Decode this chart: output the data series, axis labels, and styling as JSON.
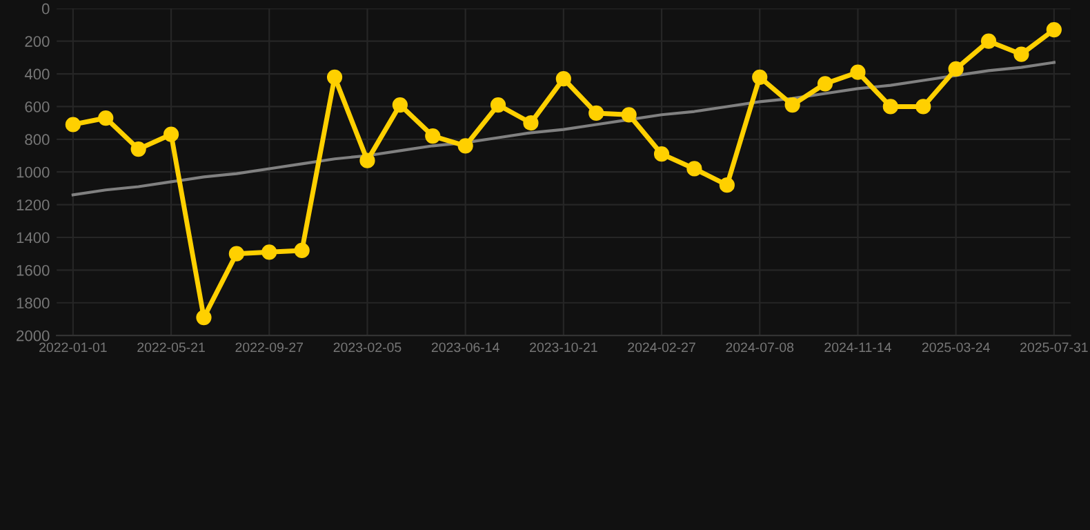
{
  "chart_data": {
    "type": "line",
    "categories": [
      "2022-01-01",
      null,
      null,
      "2022-05-21",
      null,
      null,
      "2022-09-27",
      null,
      null,
      "2023-02-05",
      null,
      null,
      "2023-06-14",
      null,
      null,
      "2023-10-21",
      null,
      null,
      "2024-02-27",
      null,
      null,
      "2024-07-08",
      null,
      null,
      "2024-11-14",
      null,
      null,
      "2025-03-24",
      null,
      null,
      "2025-07-31"
    ],
    "series": [
      {
        "color": "#ffd000",
        "marker": "circle",
        "values": [
          710,
          670,
          860,
          770,
          1890,
          1500,
          1490,
          1480,
          420,
          930,
          590,
          780,
          840,
          590,
          700,
          430,
          640,
          650,
          890,
          980,
          1080,
          420,
          590,
          460,
          390,
          600,
          600,
          370,
          200,
          280,
          130
        ]
      },
      {
        "type": "line",
        "color": "#808080",
        "marker": "none",
        "values": [
          1140,
          1110,
          1090,
          1060,
          1030,
          1010,
          980,
          950,
          920,
          900,
          870,
          840,
          820,
          790,
          760,
          740,
          710,
          680,
          650,
          630,
          600,
          570,
          550,
          520,
          490,
          470,
          440,
          410,
          380,
          360,
          330
        ]
      }
    ],
    "ylim": [
      2000,
      0
    ],
    "yticks": [
      0,
      200,
      400,
      600,
      800,
      1000,
      1200,
      1400,
      1600,
      1800,
      2000
    ],
    "grid": true,
    "legend": false
  }
}
